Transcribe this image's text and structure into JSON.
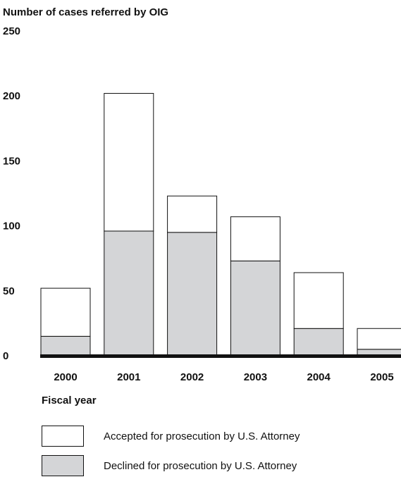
{
  "chart_data": {
    "type": "bar",
    "stacked": true,
    "title": "Number of cases referred by OIG",
    "xlabel": "Fiscal year",
    "ylabel": "",
    "ylim": [
      0,
      250
    ],
    "yticks": [
      "0",
      "50",
      "100",
      "150",
      "200",
      "250"
    ],
    "categories": [
      "2000",
      "2001",
      "2002",
      "2003",
      "2004",
      "2005"
    ],
    "series": [
      {
        "name": "Declined for prosecution by U.S. Attorney",
        "color": "#d4d5d7",
        "values": [
          15,
          96,
          95,
          73,
          21,
          5
        ]
      },
      {
        "name": "Accepted for prosecution by U.S. Attorney",
        "color": "#ffffff",
        "values": [
          37,
          106,
          28,
          34,
          43,
          16
        ]
      }
    ],
    "grid": false,
    "legend": "bottom"
  }
}
